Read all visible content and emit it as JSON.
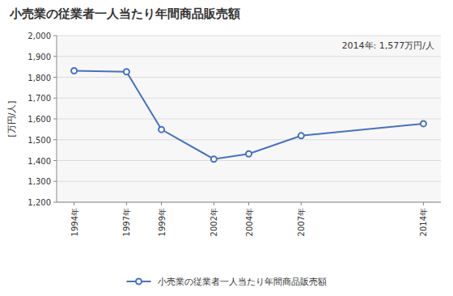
{
  "chart_data": {
    "type": "line",
    "title": "小売業の従業者一人当たり年間商品販売額",
    "y_label": "[万円/人]",
    "annotation": "2014年: 1,577万円/人",
    "x": [
      1994,
      1997,
      1999,
      2002,
      2004,
      2007,
      2014
    ],
    "xlim": [
      1993,
      2015
    ],
    "xticks": [
      {
        "value": 1994,
        "label": "1994年"
      },
      {
        "value": 1997,
        "label": "1997年"
      },
      {
        "value": 1999,
        "label": "1999年"
      },
      {
        "value": 2002,
        "label": "2002年"
      },
      {
        "value": 2004,
        "label": "2004年"
      },
      {
        "value": 2007,
        "label": "2007年"
      },
      {
        "value": 2014,
        "label": "2014年"
      }
    ],
    "ylim": [
      1200,
      2000
    ],
    "yticks": [
      {
        "value": 1200,
        "label": "1,200"
      },
      {
        "value": 1300,
        "label": "1,300"
      },
      {
        "value": 1400,
        "label": "1,400"
      },
      {
        "value": 1500,
        "label": "1,500"
      },
      {
        "value": 1600,
        "label": "1,600"
      },
      {
        "value": 1700,
        "label": "1,700"
      },
      {
        "value": 1800,
        "label": "1,800"
      },
      {
        "value": 1900,
        "label": "1,900"
      },
      {
        "value": 2000,
        "label": "2,000"
      }
    ],
    "grid": true,
    "legend": "bottom",
    "series": [
      {
        "name": "小売業の従業者一人当たり年間商品販売額",
        "color": "#4472C4",
        "marker": "circle",
        "values": [
          1831,
          1826,
          1549,
          1407,
          1432,
          1519,
          1577
        ]
      }
    ]
  }
}
